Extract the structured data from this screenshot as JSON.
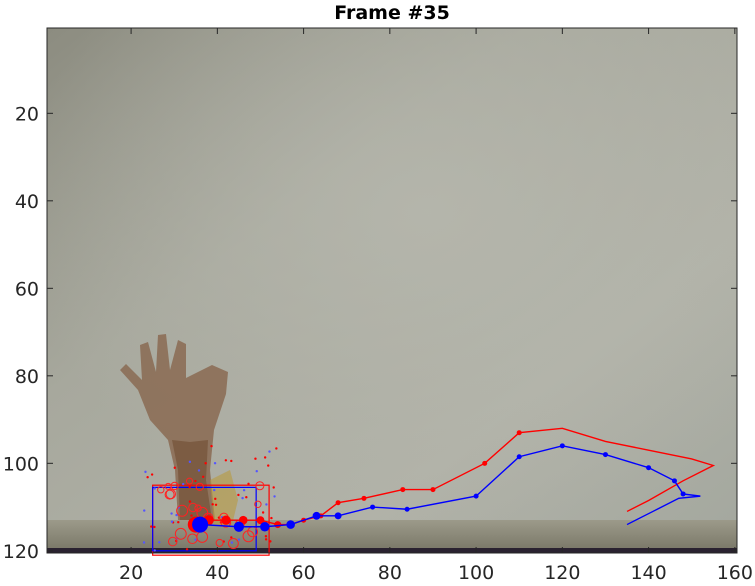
{
  "chart_data": {
    "type": "line",
    "title": "Frame #35",
    "xlabel": "",
    "ylabel": "",
    "xlim": [
      0.5,
      160.5
    ],
    "ylim": [
      0.5,
      120.5
    ],
    "y_reversed": true,
    "grid": false,
    "legend": "none",
    "x_ticks": [
      20,
      40,
      60,
      80,
      100,
      120,
      140,
      160
    ],
    "y_ticks": [
      20,
      40,
      60,
      80,
      100,
      120
    ],
    "background": "webcam frame of a raised hand against a grey wall",
    "series": [
      {
        "color": "#ff0000",
        "style": "line-with-markers",
        "points": [
          [
            35,
            114
          ],
          [
            38,
            113
          ],
          [
            42,
            113
          ],
          [
            46,
            113
          ],
          [
            50,
            113
          ],
          [
            54,
            114
          ],
          [
            57,
            114
          ],
          [
            60,
            113
          ],
          [
            64,
            112
          ],
          [
            68,
            109
          ],
          [
            74,
            108
          ],
          [
            83,
            106
          ],
          [
            90,
            106
          ],
          [
            102,
            100
          ],
          [
            110,
            93
          ],
          [
            120,
            92
          ],
          [
            130,
            95
          ],
          [
            140,
            97
          ],
          [
            150,
            99
          ],
          [
            155,
            100.5
          ],
          [
            148,
            104
          ],
          [
            140,
            108.5
          ],
          [
            135,
            111
          ]
        ]
      },
      {
        "color": "#0000ff",
        "style": "line-with-markers",
        "points": [
          [
            36,
            114
          ],
          [
            45,
            114.5
          ],
          [
            51,
            114.5
          ],
          [
            57,
            114
          ],
          [
            63,
            112
          ],
          [
            68,
            112
          ],
          [
            76,
            110
          ],
          [
            84,
            110.5
          ],
          [
            100,
            107.5
          ],
          [
            110,
            98.5
          ],
          [
            120,
            96
          ],
          [
            130,
            98
          ],
          [
            140,
            101
          ],
          [
            146,
            104
          ],
          [
            148,
            107
          ],
          [
            152,
            107.5
          ],
          [
            147,
            108
          ],
          [
            141,
            111
          ],
          [
            135,
            114
          ]
        ]
      }
    ],
    "detections": [
      {
        "color": "#ff0000",
        "box": [
          [
            25,
            105
          ],
          [
            52,
            121
          ]
        ]
      },
      {
        "color": "#0000ff",
        "box": [
          [
            25,
            105.5
          ],
          [
            49,
            120
          ]
        ]
      }
    ]
  }
}
